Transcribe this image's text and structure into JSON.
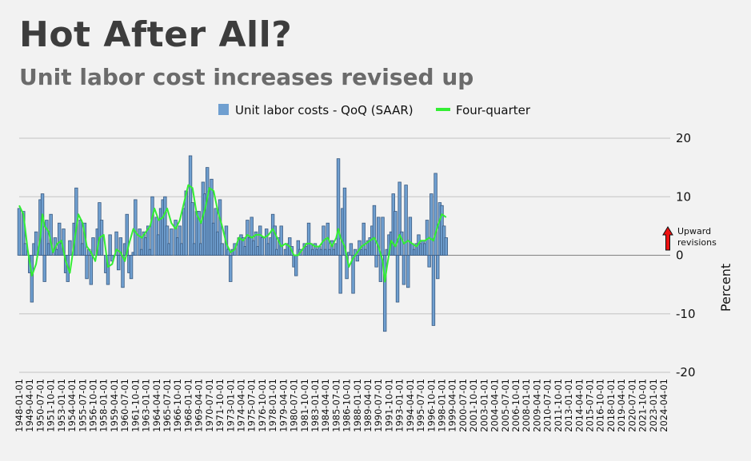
{
  "chart_data": {
    "type": "bar",
    "title": "Hot After All?",
    "subtitle": "Unit labor cost increases revised up",
    "ylabel": "Percent",
    "ylim": [
      -20,
      20
    ],
    "yticks": [
      -20,
      -10,
      0,
      10,
      20
    ],
    "grid": true,
    "legend_position": "top-center",
    "annotation": "Upward revisions",
    "annotation_lines": [
      "Upward",
      "revisions"
    ],
    "x_tick_labels": [
      "1948-01-01",
      "1949-04-01",
      "1950-07-01",
      "1951-10-01",
      "1953-01-01",
      "1954-04-01",
      "1955-07-01",
      "1956-10-01",
      "1958-01-01",
      "1959-04-01",
      "1960-07-01",
      "1961-10-01",
      "1963-01-01",
      "1964-04-01",
      "1965-07-01",
      "1966-10-01",
      "1968-01-01",
      "1969-04-01",
      "1970-07-01",
      "1971-10-01",
      "1973-01-01",
      "1974-04-01",
      "1975-07-01",
      "1976-10-01",
      "1978-01-01",
      "1979-04-01",
      "1980-07-01",
      "1981-10-01",
      "1983-01-01",
      "1984-04-01",
      "1985-07-01",
      "1986-10-01",
      "1988-01-01",
      "1989-04-01",
      "1990-07-01",
      "1991-10-01",
      "1993-01-01",
      "1994-04-01",
      "1995-07-01",
      "1996-10-01",
      "1998-01-01",
      "1999-04-01",
      "2000-07-01",
      "2001-10-01",
      "2003-01-01",
      "2004-04-01",
      "2005-07-01",
      "2006-10-01",
      "2008-01-01",
      "2009-04-01",
      "2010-07-01",
      "2011-10-01",
      "2013-01-01",
      "2014-04-01",
      "2015-07-01",
      "2016-10-01",
      "2018-01-01",
      "2019-04-01",
      "2020-07-01",
      "2021-10-01",
      "2023-01-01",
      "2024-04-01"
    ],
    "colors": {
      "bars": "#6f9fd0",
      "bar_edge": "#3a5a80",
      "line": "#33ee33",
      "annotation_arrow": "#ee1111",
      "grid": "#cccccc"
    },
    "series": [
      {
        "name": "Unit labor costs - QoQ (SAAR)",
        "type": "bar",
        "values": [
          [
            1948.0,
            8.0
          ],
          [
            1948.5,
            7.5
          ],
          [
            1948.75,
            2.0
          ],
          [
            1949.25,
            -3.0
          ],
          [
            1949.5,
            -8.0
          ],
          [
            1949.75,
            2.0
          ],
          [
            1950.0,
            4.0
          ],
          [
            1950.5,
            9.5
          ],
          [
            1950.75,
            10.5
          ],
          [
            1951.0,
            -4.5
          ],
          [
            1951.25,
            6.0
          ],
          [
            1951.5,
            2.0
          ],
          [
            1951.75,
            7.0
          ],
          [
            1952.25,
            3.0
          ],
          [
            1952.5,
            1.0
          ],
          [
            1952.75,
            5.5
          ],
          [
            1953.0,
            2.0
          ],
          [
            1953.25,
            4.5
          ],
          [
            1953.5,
            -3.0
          ],
          [
            1953.75,
            -4.5
          ],
          [
            1954.0,
            2.5
          ],
          [
            1954.5,
            5.5
          ],
          [
            1954.75,
            11.5
          ],
          [
            1955.25,
            6.0
          ],
          [
            1955.5,
            2.0
          ],
          [
            1955.75,
            5.5
          ],
          [
            1956.0,
            -4.0
          ],
          [
            1956.25,
            1.0
          ],
          [
            1956.5,
            -5.0
          ],
          [
            1956.75,
            3.0
          ],
          [
            1957.25,
            4.5
          ],
          [
            1957.5,
            9.0
          ],
          [
            1957.75,
            6.0
          ],
          [
            1958.25,
            -3.0
          ],
          [
            1958.5,
            -5.0
          ],
          [
            1958.75,
            3.5
          ],
          [
            1959.0,
            -1.0
          ],
          [
            1959.5,
            4.0
          ],
          [
            1959.75,
            -2.5
          ],
          [
            1960.0,
            3.0
          ],
          [
            1960.25,
            -5.5
          ],
          [
            1960.5,
            2.0
          ],
          [
            1960.75,
            7.0
          ],
          [
            1961.0,
            -3.0
          ],
          [
            1961.25,
            -4.0
          ],
          [
            1961.5,
            0.5
          ],
          [
            1961.75,
            9.5
          ],
          [
            1962.25,
            4.5
          ],
          [
            1962.5,
            1.0
          ],
          [
            1962.75,
            4.0
          ],
          [
            1963.0,
            3.0
          ],
          [
            1963.25,
            5.0
          ],
          [
            1963.5,
            1.0
          ],
          [
            1963.75,
            10.0
          ],
          [
            1964.25,
            6.5
          ],
          [
            1964.5,
            3.5
          ],
          [
            1964.75,
            8.0
          ],
          [
            1965.0,
            9.5
          ],
          [
            1965.25,
            10.0
          ],
          [
            1965.5,
            5.0
          ],
          [
            1965.75,
            2.0
          ],
          [
            1966.0,
            4.5
          ],
          [
            1966.5,
            6.0
          ],
          [
            1966.75,
            3.0
          ],
          [
            1967.0,
            5.0
          ],
          [
            1967.25,
            2.0
          ],
          [
            1967.5,
            8.0
          ],
          [
            1967.75,
            11.0
          ],
          [
            1968.25,
            17.0
          ],
          [
            1968.5,
            9.0
          ],
          [
            1968.75,
            2.0
          ],
          [
            1969.0,
            7.5
          ],
          [
            1969.25,
            7.5
          ],
          [
            1969.5,
            2.0
          ],
          [
            1969.75,
            12.5
          ],
          [
            1970.0,
            10.5
          ],
          [
            1970.25,
            15.0
          ],
          [
            1970.5,
            11.0
          ],
          [
            1970.75,
            13.0
          ],
          [
            1971.0,
            5.5
          ],
          [
            1971.25,
            8.0
          ],
          [
            1971.5,
            4.0
          ],
          [
            1971.75,
            9.5
          ],
          [
            1972.0,
            2.0
          ],
          [
            1972.5,
            5.0
          ],
          [
            1972.75,
            1.0
          ],
          [
            1973.0,
            -4.5
          ],
          [
            1973.25,
            1.0
          ],
          [
            1973.5,
            2.0
          ],
          [
            1974.0,
            3.0
          ],
          [
            1974.25,
            3.5
          ],
          [
            1974.5,
            3.0
          ],
          [
            1974.75,
            1.5
          ],
          [
            1975.0,
            6.0
          ],
          [
            1975.25,
            3.0
          ],
          [
            1975.5,
            6.5
          ],
          [
            1975.75,
            2.5
          ],
          [
            1976.0,
            4.0
          ],
          [
            1976.25,
            1.5
          ],
          [
            1976.5,
            5.0
          ],
          [
            1976.75,
            3.0
          ],
          [
            1977.25,
            4.5
          ],
          [
            1977.5,
            2.0
          ],
          [
            1977.75,
            3.0
          ],
          [
            1978.0,
            7.0
          ],
          [
            1978.25,
            5.0
          ],
          [
            1978.5,
            1.0
          ],
          [
            1978.75,
            3.0
          ],
          [
            1979.0,
            5.0
          ],
          [
            1979.5,
            1.0
          ],
          [
            1979.75,
            2.0
          ],
          [
            1980.0,
            3.0
          ],
          [
            1980.25,
            1.5
          ],
          [
            1980.5,
            -2.0
          ],
          [
            1980.75,
            -3.5
          ],
          [
            1981.0,
            2.5
          ],
          [
            1981.25,
            1.0
          ],
          [
            1981.75,
            2.0
          ],
          [
            1982.0,
            1.5
          ],
          [
            1982.25,
            5.5
          ],
          [
            1982.5,
            2.0
          ],
          [
            1982.75,
            1.0
          ],
          [
            1983.0,
            2.0
          ],
          [
            1983.25,
            1.0
          ],
          [
            1983.5,
            1.5
          ],
          [
            1983.75,
            1.0
          ],
          [
            1984.0,
            5.0
          ],
          [
            1984.25,
            1.0
          ],
          [
            1984.5,
            5.5
          ],
          [
            1984.75,
            1.0
          ],
          [
            1985.0,
            2.5
          ],
          [
            1985.25,
            1.0
          ],
          [
            1985.5,
            2.0
          ],
          [
            1985.75,
            16.5
          ],
          [
            1986.0,
            -6.5
          ],
          [
            1986.25,
            8.0
          ],
          [
            1986.5,
            11.5
          ],
          [
            1986.75,
            -4.0
          ],
          [
            1987.0,
            0.5
          ],
          [
            1987.25,
            2.0
          ],
          [
            1987.5,
            -6.5
          ],
          [
            1987.75,
            1.0
          ],
          [
            1988.0,
            -1.0
          ],
          [
            1988.25,
            2.5
          ],
          [
            1988.5,
            1.0
          ],
          [
            1988.75,
            5.5
          ],
          [
            1989.0,
            1.0
          ],
          [
            1989.25,
            2.5
          ],
          [
            1989.5,
            3.0
          ],
          [
            1989.75,
            5.0
          ],
          [
            1990.0,
            8.5
          ],
          [
            1990.25,
            -2.0
          ],
          [
            1990.5,
            6.5
          ],
          [
            1990.75,
            -4.5
          ],
          [
            1991.0,
            6.5
          ],
          [
            1991.25,
            -13.0
          ],
          [
            1991.5,
            1.0
          ],
          [
            1991.75,
            3.5
          ],
          [
            1992.0,
            4.0
          ],
          [
            1992.25,
            10.5
          ],
          [
            1992.5,
            7.5
          ],
          [
            1992.75,
            -8.0
          ],
          [
            1993.0,
            12.5
          ],
          [
            1993.25,
            4.0
          ],
          [
            1993.5,
            -5.0
          ],
          [
            1993.75,
            12.0
          ],
          [
            1994.0,
            -5.5
          ],
          [
            1994.25,
            6.5
          ],
          [
            1994.5,
            2.0
          ],
          [
            1994.75,
            1.0
          ],
          [
            1995.0,
            2.0
          ],
          [
            1995.25,
            3.5
          ],
          [
            1995.5,
            2.0
          ],
          [
            1995.75,
            2.5
          ],
          [
            1996.0,
            2.0
          ],
          [
            1996.25,
            6.0
          ],
          [
            1996.5,
            -2.0
          ],
          [
            1996.75,
            10.5
          ],
          [
            1997.0,
            -12.0
          ],
          [
            1997.25,
            14.0
          ],
          [
            1997.5,
            -4.0
          ],
          [
            1997.75,
            9.0
          ],
          [
            1998.0,
            8.5
          ],
          [
            1998.25,
            5.0
          ],
          [
            1998.5,
            3.0
          ]
        ]
      },
      {
        "name": "Four-quarter",
        "type": "line",
        "values": [
          [
            1948.0,
            8.5
          ],
          [
            1948.5,
            7.0
          ],
          [
            1949.0,
            1.0
          ],
          [
            1949.5,
            -3.5
          ],
          [
            1950.0,
            -1.5
          ],
          [
            1950.5,
            3.0
          ],
          [
            1950.75,
            7.0
          ],
          [
            1951.0,
            5.0
          ],
          [
            1951.5,
            4.0
          ],
          [
            1952.0,
            0.5
          ],
          [
            1952.5,
            2.0
          ],
          [
            1953.0,
            2.5
          ],
          [
            1953.5,
            -1.0
          ],
          [
            1954.0,
            -3.0
          ],
          [
            1954.5,
            2.0
          ],
          [
            1955.0,
            7.0
          ],
          [
            1955.5,
            5.5
          ],
          [
            1956.0,
            1.5
          ],
          [
            1956.5,
            0.5
          ],
          [
            1957.0,
            -1.0
          ],
          [
            1957.5,
            3.0
          ],
          [
            1958.0,
            3.5
          ],
          [
            1958.5,
            -2.0
          ],
          [
            1959.0,
            -1.5
          ],
          [
            1959.5,
            1.0
          ],
          [
            1960.0,
            0.5
          ],
          [
            1960.5,
            -1.0
          ],
          [
            1961.0,
            2.0
          ],
          [
            1961.5,
            4.5
          ],
          [
            1962.0,
            3.5
          ],
          [
            1962.5,
            3.0
          ],
          [
            1963.0,
            4.0
          ],
          [
            1963.5,
            5.0
          ],
          [
            1964.0,
            8.0
          ],
          [
            1964.5,
            6.0
          ],
          [
            1965.0,
            6.5
          ],
          [
            1965.5,
            8.0
          ],
          [
            1966.0,
            5.5
          ],
          [
            1966.5,
            4.5
          ],
          [
            1967.0,
            6.0
          ],
          [
            1967.5,
            9.0
          ],
          [
            1968.0,
            12.0
          ],
          [
            1968.5,
            11.5
          ],
          [
            1969.0,
            7.0
          ],
          [
            1969.5,
            5.5
          ],
          [
            1970.0,
            8.0
          ],
          [
            1970.5,
            11.5
          ],
          [
            1971.0,
            11.0
          ],
          [
            1971.5,
            7.5
          ],
          [
            1972.0,
            5.0
          ],
          [
            1972.5,
            2.0
          ],
          [
            1973.0,
            0.5
          ],
          [
            1973.5,
            1.0
          ],
          [
            1974.0,
            3.0
          ],
          [
            1974.5,
            2.5
          ],
          [
            1975.0,
            3.5
          ],
          [
            1975.5,
            3.0
          ],
          [
            1976.0,
            3.5
          ],
          [
            1976.5,
            3.5
          ],
          [
            1977.0,
            3.0
          ],
          [
            1977.5,
            3.5
          ],
          [
            1978.0,
            4.5
          ],
          [
            1978.5,
            3.0
          ],
          [
            1979.0,
            1.5
          ],
          [
            1979.5,
            2.0
          ],
          [
            1980.0,
            1.5
          ],
          [
            1980.5,
            0.0
          ],
          [
            1981.0,
            0.0
          ],
          [
            1981.5,
            1.0
          ],
          [
            1982.0,
            2.0
          ],
          [
            1982.5,
            2.0
          ],
          [
            1983.0,
            1.5
          ],
          [
            1983.5,
            1.5
          ],
          [
            1984.0,
            2.5
          ],
          [
            1984.5,
            3.0
          ],
          [
            1985.0,
            1.5
          ],
          [
            1985.5,
            3.0
          ],
          [
            1985.75,
            4.5
          ],
          [
            1986.0,
            3.0
          ],
          [
            1986.5,
            1.5
          ],
          [
            1987.0,
            -2.0
          ],
          [
            1987.5,
            -0.5
          ],
          [
            1988.0,
            0.5
          ],
          [
            1988.5,
            1.5
          ],
          [
            1989.0,
            2.0
          ],
          [
            1989.5,
            2.5
          ],
          [
            1990.0,
            3.0
          ],
          [
            1990.5,
            1.5
          ],
          [
            1991.0,
            -1.0
          ],
          [
            1991.25,
            -4.5
          ],
          [
            1991.5,
            -2.0
          ],
          [
            1992.0,
            2.5
          ],
          [
            1992.5,
            1.5
          ],
          [
            1993.0,
            3.5
          ],
          [
            1993.5,
            2.0
          ],
          [
            1994.0,
            2.5
          ],
          [
            1994.5,
            2.0
          ],
          [
            1995.0,
            1.5
          ],
          [
            1995.5,
            2.5
          ],
          [
            1996.0,
            2.5
          ],
          [
            1996.5,
            3.0
          ],
          [
            1997.0,
            2.5
          ],
          [
            1997.5,
            5.0
          ],
          [
            1998.0,
            7.0
          ],
          [
            1998.5,
            6.5
          ]
        ]
      }
    ]
  }
}
